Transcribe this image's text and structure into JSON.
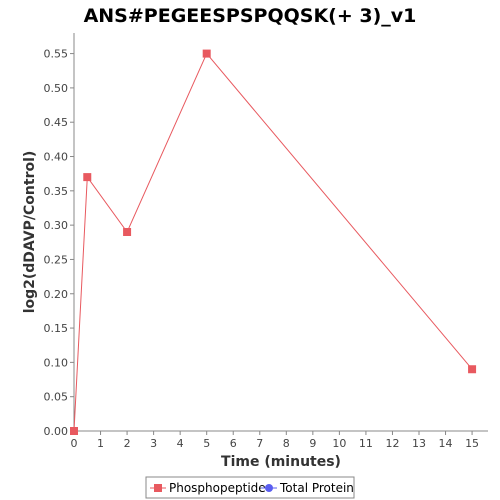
{
  "chart_data": {
    "type": "line",
    "title": "ANS#PEGEESPSPQQSK(+ 3)_v1",
    "xlabel": "Time (minutes)",
    "ylabel": "log2(dDAVP/Control)",
    "xlim": [
      0,
      15.6
    ],
    "ylim": [
      0,
      0.58
    ],
    "x_ticks": [
      0,
      1,
      2,
      3,
      4,
      5,
      6,
      7,
      8,
      9,
      10,
      11,
      12,
      13,
      14,
      15
    ],
    "y_ticks": [
      0.0,
      0.05,
      0.1,
      0.15,
      0.2,
      0.25,
      0.3,
      0.35,
      0.4,
      0.45,
      0.5,
      0.55
    ],
    "y_tick_labels": [
      "0.00",
      "0.05",
      "0.10",
      "0.15",
      "0.20",
      "0.25",
      "0.30",
      "0.35",
      "0.40",
      "0.45",
      "0.50",
      "0.55"
    ],
    "grid": false,
    "legend_position": "bottom",
    "series": [
      {
        "name": "Phosphopeptide",
        "color": "#e8595f",
        "marker": "square",
        "x": [
          0,
          0.5,
          2,
          5,
          15
        ],
        "y": [
          0.0,
          0.37,
          0.29,
          0.55,
          0.09
        ]
      },
      {
        "name": "Total Protein",
        "color": "#5a5ef0",
        "marker": "circle",
        "x": [],
        "y": []
      }
    ]
  }
}
